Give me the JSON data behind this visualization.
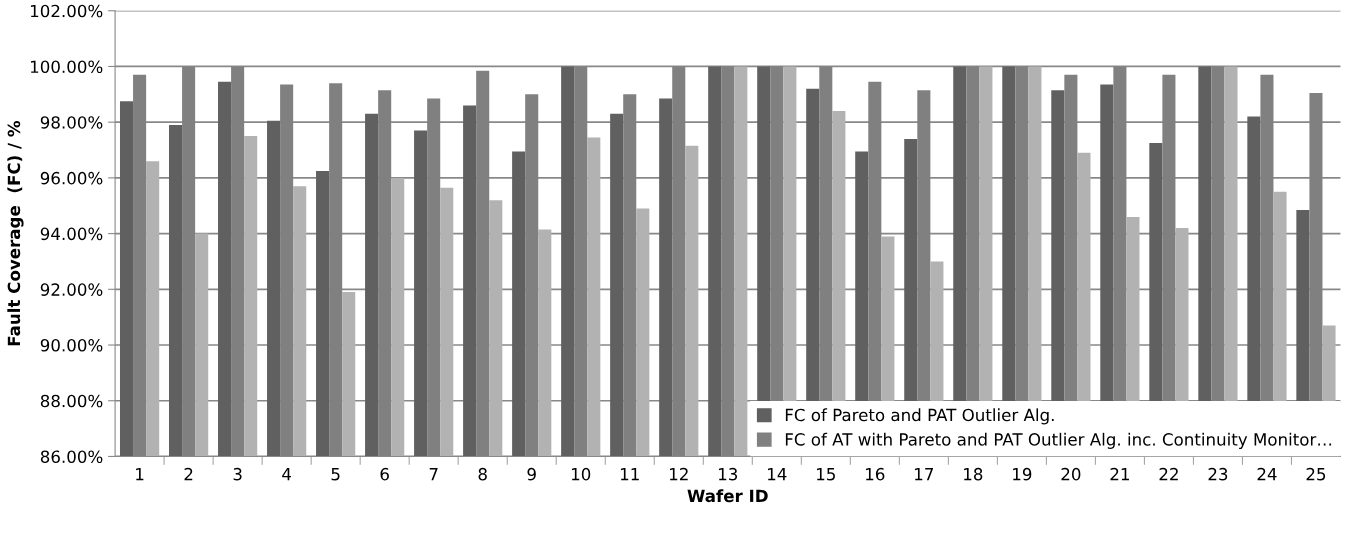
{
  "chart_data": {
    "type": "bar",
    "xlabel": "Wafer ID",
    "ylabel": "Fault Coverage  (FC) / %",
    "categories": [
      "1",
      "2",
      "3",
      "4",
      "5",
      "6",
      "7",
      "8",
      "9",
      "10",
      "11",
      "12",
      "13",
      "14",
      "15",
      "16",
      "17",
      "18",
      "19",
      "20",
      "21",
      "22",
      "23",
      "24",
      "25"
    ],
    "series": [
      {
        "name": "FC of Pareto and PAT Outlier Alg.",
        "color": "#606060",
        "values": [
          98.75,
          97.9,
          99.45,
          98.05,
          96.25,
          98.3,
          97.7,
          98.6,
          96.95,
          100,
          98.3,
          98.85,
          100,
          100,
          99.2,
          96.95,
          97.4,
          100,
          100,
          99.15,
          99.35,
          97.25,
          100,
          98.2,
          94.85
        ]
      },
      {
        "name": "FC of AT with Pareto and PAT Outlier Alg. inc. Continuity Monitor…",
        "color": "#808080",
        "values": [
          99.7,
          100,
          100,
          99.35,
          99.4,
          99.15,
          98.85,
          99.85,
          99.0,
          100,
          99.0,
          100,
          100,
          100,
          100,
          99.45,
          99.15,
          100,
          100,
          99.7,
          100,
          99.7,
          100,
          99.7,
          99.05
        ]
      },
      {
        "color": "#b2b2b2",
        "values": [
          96.6,
          94.0,
          97.5,
          95.7,
          91.9,
          96.0,
          95.65,
          95.2,
          94.15,
          97.45,
          94.9,
          97.15,
          100,
          100,
          98.4,
          93.9,
          93.0,
          100,
          100,
          96.9,
          94.6,
          94.2,
          100,
          95.5,
          90.7
        ]
      }
    ],
    "ylim": [
      86,
      102
    ],
    "yticks": [
      {
        "value": 86,
        "label": "86.00%"
      },
      {
        "value": 88,
        "label": "88.00%"
      },
      {
        "value": 90,
        "label": "90.00%"
      },
      {
        "value": 92,
        "label": "92.00%"
      },
      {
        "value": 94,
        "label": "94.00%"
      },
      {
        "value": 96,
        "label": "96.00%"
      },
      {
        "value": 98,
        "label": "98.00%"
      },
      {
        "value": 100,
        "label": "100.00%"
      },
      {
        "value": 102,
        "label": "102.00%"
      }
    ],
    "grid": "y",
    "legend": "bottom right"
  }
}
